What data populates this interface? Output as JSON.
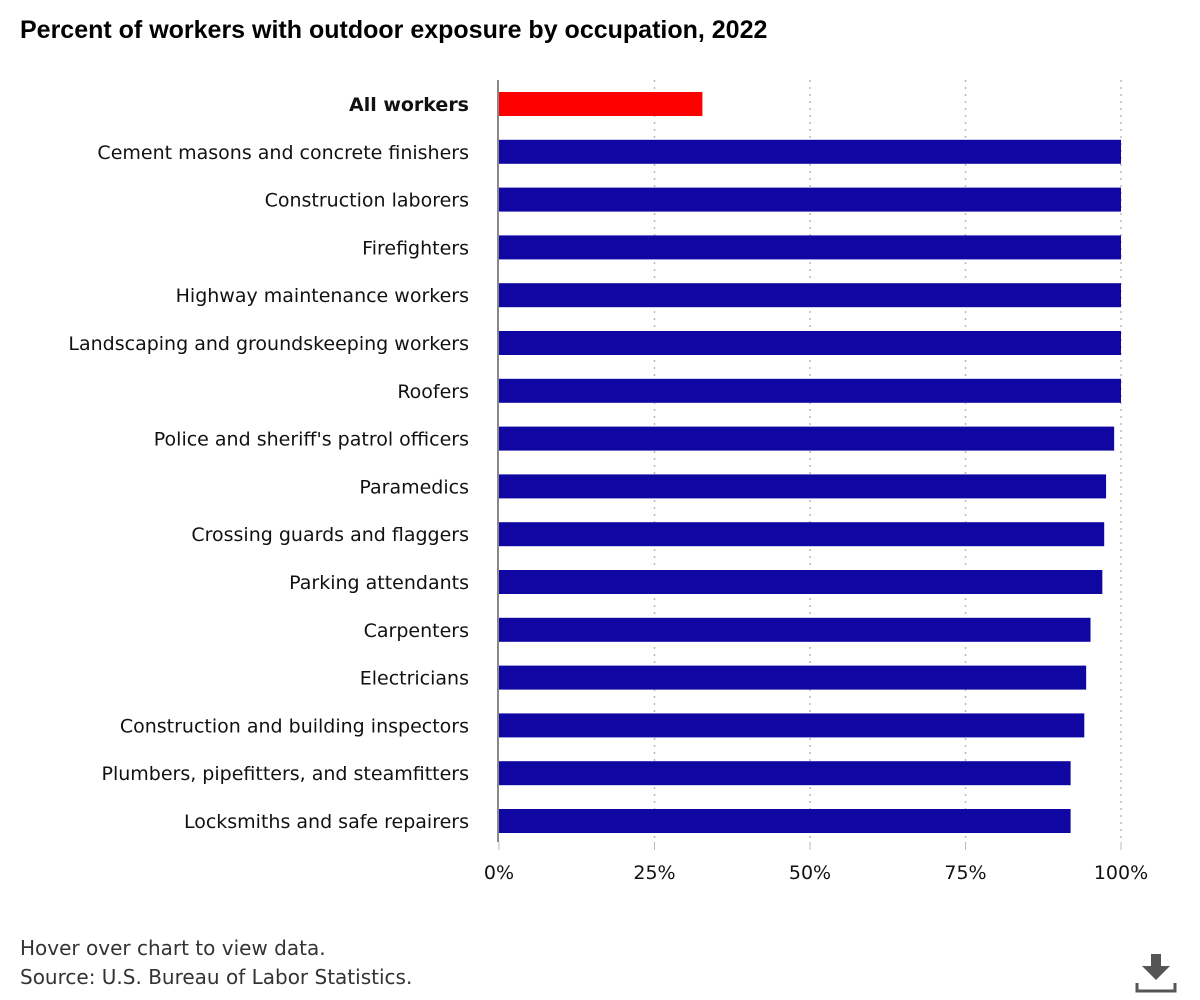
{
  "chart_data": {
    "type": "bar",
    "orientation": "horizontal",
    "title": "Percent of workers with outdoor exposure by occupation, 2022",
    "categories": [
      "All workers",
      "Cement masons and concrete finishers",
      "Construction laborers",
      "Firefighters",
      "Highway maintenance workers",
      "Landscaping and groundskeeping workers",
      "Roofers",
      "Police and sheriff's patrol officers",
      "Paramedics",
      "Crossing guards and flaggers",
      "Parking attendants",
      "Carpenters",
      "Electricians",
      "Construction and building inspectors",
      "Plumbers, pipefitters, and steamfitters",
      "Locksmiths and safe repairers"
    ],
    "values": [
      32.7,
      100,
      100,
      100,
      100,
      100,
      100,
      98.9,
      97.6,
      97.3,
      97.0,
      95.1,
      94.4,
      94.1,
      91.9,
      91.9
    ],
    "highlight_category": "All workers",
    "colors": {
      "highlight": "#ff0000",
      "bar": "#1007a3",
      "grid": "#bbbbbb",
      "axis": "#888888"
    },
    "xlim": [
      0,
      100
    ],
    "x_ticks": [
      "0%",
      "25%",
      "50%",
      "75%",
      "100%"
    ],
    "grid": "vertical-dotted",
    "xlabel": "",
    "ylabel": ""
  },
  "footer": {
    "hover_note": "Hover over chart to view data.",
    "source": "Source: U.S. Bureau of Labor Statistics."
  },
  "controls": {
    "download_icon": "download-icon"
  }
}
